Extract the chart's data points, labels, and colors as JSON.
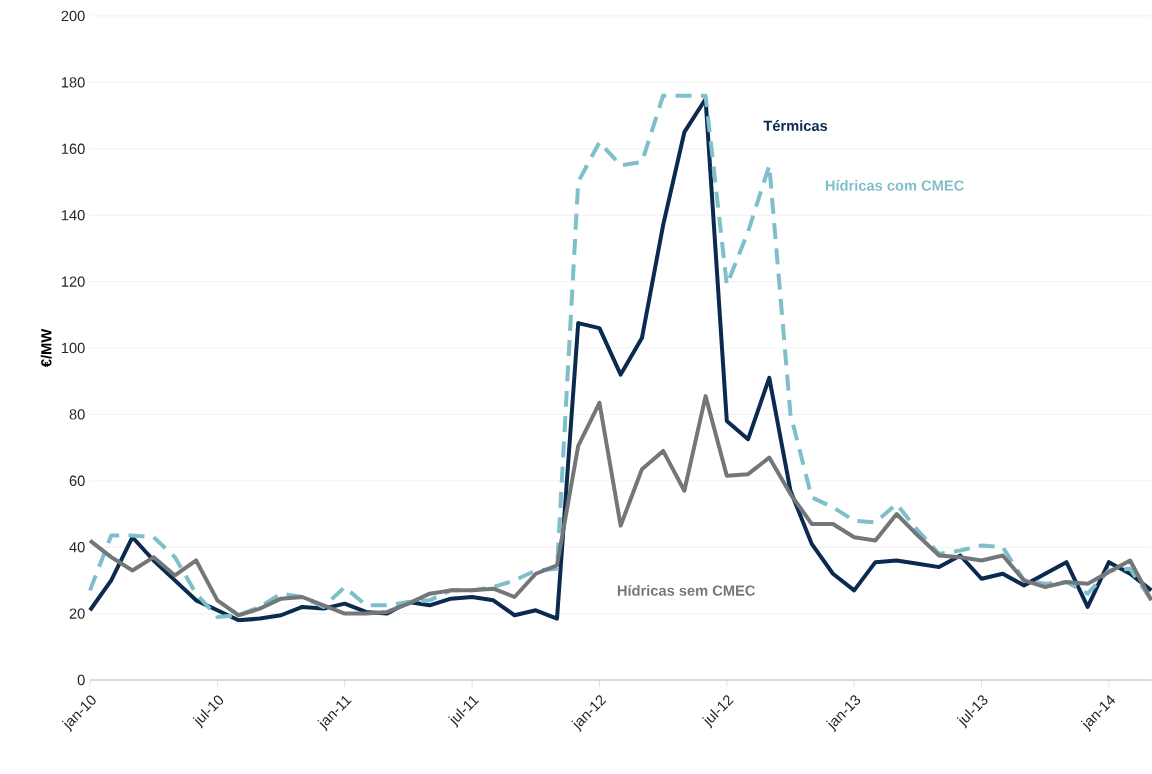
{
  "chart_data": {
    "type": "line",
    "ylabel": "€/MW",
    "x": [
      "2010-01",
      "2010-02",
      "2010-03",
      "2010-04",
      "2010-05",
      "2010-06",
      "2010-07",
      "2010-08",
      "2010-09",
      "2010-10",
      "2010-11",
      "2010-12",
      "2011-01",
      "2011-02",
      "2011-03",
      "2011-04",
      "2011-05",
      "2011-06",
      "2011-07",
      "2011-08",
      "2011-09",
      "2011-10",
      "2011-11",
      "2011-12",
      "2012-01",
      "2012-02",
      "2012-03",
      "2012-04",
      "2012-05",
      "2012-06",
      "2012-07",
      "2012-08",
      "2012-09",
      "2012-10",
      "2012-11",
      "2012-12",
      "2013-01",
      "2013-02",
      "2013-03",
      "2013-04",
      "2013-05",
      "2013-06",
      "2013-07",
      "2013-08",
      "2013-09",
      "2013-10",
      "2013-11",
      "2013-12",
      "2014-01",
      "2014-02",
      "2014-03"
    ],
    "series": [
      {
        "name": "Térmicas",
        "color": "#0b2a4f",
        "line_style": "solid",
        "values": [
          21,
          30,
          43,
          36,
          30,
          24,
          21,
          18,
          18.5,
          19.5,
          22,
          21.5,
          23,
          20.5,
          20,
          23.5,
          22.5,
          24.5,
          25,
          24,
          19.5,
          21,
          18.5,
          107.5,
          106,
          92,
          103,
          137,
          165,
          175,
          78,
          72.5,
          91,
          57,
          41,
          32,
          27,
          35.5,
          36,
          35,
          34,
          37.5,
          30.5,
          32,
          28.5,
          32,
          35.5,
          22,
          35.5,
          32,
          27
        ]
      },
      {
        "name": "Hídricas com CMEC",
        "color": "#7fbfca",
        "line_style": "dashed",
        "values": [
          27,
          43.5,
          43.5,
          43,
          37,
          26,
          19,
          19.5,
          22,
          26,
          25,
          22,
          28,
          22.5,
          22.5,
          23.5,
          24,
          27,
          27,
          28,
          30,
          33,
          33.5,
          150,
          162,
          155,
          156,
          176,
          176,
          176,
          119,
          135,
          155,
          80,
          55,
          52,
          48,
          47.5,
          53,
          45,
          38,
          39,
          40.5,
          40,
          30,
          29,
          29.5,
          26,
          33,
          33.5,
          24
        ]
      },
      {
        "name": "Hídricas sem CMEC",
        "color": "#747779",
        "line_style": "solid",
        "values": [
          42,
          37,
          33,
          37,
          31.5,
          36,
          24,
          19.5,
          21.5,
          24.5,
          25,
          22.5,
          20,
          20,
          20.5,
          23,
          26,
          27,
          27,
          27.5,
          25,
          32,
          34.5,
          70.5,
          83.5,
          46.5,
          63.5,
          69,
          57,
          85.5,
          61.5,
          62,
          67,
          56,
          47,
          47,
          43,
          42,
          50,
          43.5,
          37.5,
          37,
          36,
          37.5,
          30,
          28,
          29.5,
          29,
          32.5,
          36,
          24
        ]
      }
    ],
    "xlim": [
      "2010-01",
      "2014-03"
    ],
    "xticks": [
      {
        "value": "2010-01",
        "label": "jan-10"
      },
      {
        "value": "2010-07",
        "label": "jul-10"
      },
      {
        "value": "2011-01",
        "label": "jan-11"
      },
      {
        "value": "2011-07",
        "label": "jul-11"
      },
      {
        "value": "2012-01",
        "label": "jan-12"
      },
      {
        "value": "2012-07",
        "label": "jul-12"
      },
      {
        "value": "2013-01",
        "label": "jan-13"
      },
      {
        "value": "2013-07",
        "label": "jul-13"
      },
      {
        "value": "2014-01",
        "label": "jan-14"
      }
    ],
    "ylim": [
      0,
      200
    ],
    "yticks": [
      0,
      20,
      40,
      60,
      80,
      100,
      120,
      140,
      160,
      180,
      200
    ],
    "grid": "y",
    "legend": false,
    "marker": "none"
  }
}
